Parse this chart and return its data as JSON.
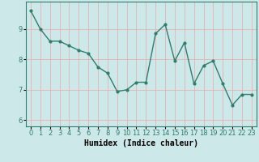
{
  "x": [
    0,
    1,
    2,
    3,
    4,
    5,
    6,
    7,
    8,
    9,
    10,
    11,
    12,
    13,
    14,
    15,
    16,
    17,
    18,
    19,
    20,
    21,
    22,
    23
  ],
  "y": [
    9.6,
    9.0,
    8.6,
    8.6,
    8.45,
    8.3,
    8.2,
    7.75,
    7.55,
    6.95,
    7.0,
    7.25,
    7.25,
    8.85,
    9.15,
    7.95,
    8.55,
    7.2,
    7.8,
    7.95,
    7.2,
    6.5,
    6.85,
    6.85
  ],
  "line_color": "#2e7d6e",
  "marker": ".",
  "markersize": 4,
  "linewidth": 1.0,
  "background_color": "#cde8e8",
  "grid_color": "#e8b0b0",
  "xlabel": "Humidex (Indice chaleur)",
  "ylabel": "",
  "xlim": [
    -0.5,
    23.5
  ],
  "ylim": [
    5.8,
    9.9
  ],
  "yticks": [
    6,
    7,
    8,
    9
  ],
  "xticks": [
    0,
    1,
    2,
    3,
    4,
    5,
    6,
    7,
    8,
    9,
    10,
    11,
    12,
    13,
    14,
    15,
    16,
    17,
    18,
    19,
    20,
    21,
    22,
    23
  ],
  "tick_fontsize": 6,
  "xlabel_fontsize": 7
}
